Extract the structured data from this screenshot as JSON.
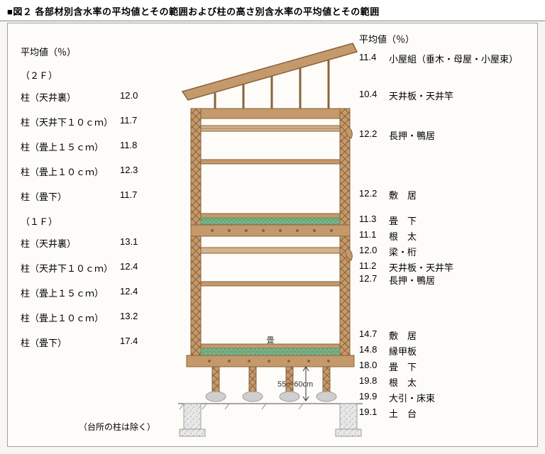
{
  "figure": {
    "prefix": "■図２",
    "title": "各部材別含水率の平均値とその範囲および柱の高さ別含水率の平均値とその範囲"
  },
  "left": {
    "header": "平均値（％）",
    "floor2_label": "（２Ｆ）",
    "floor1_label": "（１Ｆ）",
    "rows2F": [
      {
        "label": "柱（天井裏）",
        "value": "12.0"
      },
      {
        "label": "柱（天井下１０ｃｍ）",
        "value": "11.7"
      },
      {
        "label": "柱（畳上１５ｃｍ）",
        "value": "11.8"
      },
      {
        "label": "柱（畳上１０ｃｍ）",
        "value": "12.3"
      },
      {
        "label": "柱（畳下）",
        "value": "11.7"
      }
    ],
    "rows1F": [
      {
        "label": "柱（天井裏）",
        "value": "13.1"
      },
      {
        "label": "柱（天井下１０ｃｍ）",
        "value": "12.4"
      },
      {
        "label": "柱（畳上１５ｃｍ）",
        "value": "12.4"
      },
      {
        "label": "柱（畳上１０ｃｍ）",
        "value": "13.2"
      },
      {
        "label": "柱（畳下）",
        "value": "17.4"
      }
    ],
    "footnote": "（台所の柱は除く）"
  },
  "right": {
    "header": "平均値（％）",
    "groups": [
      {
        "tight": false,
        "rows": [
          {
            "value": "11.4",
            "label": "小屋組（垂木・母屋・小屋束）"
          }
        ]
      },
      {
        "tight": false,
        "rows": [
          {
            "value": "10.4",
            "label": "天井板・天井竿"
          }
        ]
      },
      {
        "tight": false,
        "rows": [
          {
            "value": "12.2",
            "label": "長押・鴨居"
          }
        ]
      },
      {
        "tight": false,
        "rows": [
          {
            "value": "12.2",
            "label": "敷　居"
          }
        ]
      },
      {
        "tight": true,
        "rows": [
          {
            "value": "11.3",
            "label": "畳　下"
          },
          {
            "value": "11.1",
            "label": "根　太"
          },
          {
            "value": "12.0",
            "label": "梁・桁"
          },
          {
            "value": "11.2",
            "label": "天井板・天井竿"
          }
        ]
      },
      {
        "tight": false,
        "rows": [
          {
            "value": "12.7",
            "label": "長押・鴨居"
          }
        ]
      },
      {
        "tight": true,
        "rows": [
          {
            "value": "14.7",
            "label": "敷　居"
          },
          {
            "value": "14.8",
            "label": "縁甲板"
          },
          {
            "value": "18.0",
            "label": "畳　下"
          },
          {
            "value": "19.8",
            "label": "根　太"
          },
          {
            "value": "19.9",
            "label": "大引・床束"
          },
          {
            "value": "19.1",
            "label": "土　台"
          }
        ]
      }
    ]
  },
  "diagram": {
    "dimension_label": "55〜60cm",
    "colors": {
      "wood": "#c49a6c",
      "wood_dark": "#a67c52",
      "wood_edge": "#8a6239",
      "tatami": "#7fb88f",
      "tatami_pattern": "#5a9268",
      "stone": "#cfcfcf",
      "stone_edge": "#9e9e9e",
      "ground": "#888",
      "line": "#6b4a2e"
    }
  }
}
